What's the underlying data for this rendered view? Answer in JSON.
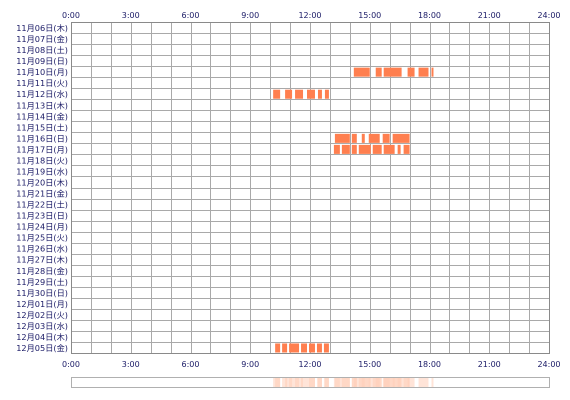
{
  "chart_data": {
    "type": "timeline",
    "x_ticks": [
      "0:00",
      "3:00",
      "6:00",
      "9:00",
      "12:00",
      "15:00",
      "18:00",
      "21:00",
      "24:00"
    ],
    "xlim": [
      0,
      24
    ],
    "grid": true,
    "bar_color": "#ff7f4f",
    "summary_color": "#ffcdb8",
    "days": [
      "11月06日(木)",
      "11月07日(金)",
      "11月08日(土)",
      "11月09日(日)",
      "11月10日(月)",
      "11月11日(火)",
      "11月12日(水)",
      "11月13日(木)",
      "11月14日(金)",
      "11月15日(土)",
      "11月16日(日)",
      "11月17日(月)",
      "11月18日(火)",
      "11月19日(水)",
      "11月20日(木)",
      "11月21日(金)",
      "11月22日(土)",
      "11月23日(日)",
      "11月24日(月)",
      "11月25日(火)",
      "11月26日(水)",
      "11月27日(木)",
      "11月28日(金)",
      "11月29日(土)",
      "11月30日(日)",
      "12月01日(月)",
      "12月02日(火)",
      "12月03日(水)",
      "12月04日(木)",
      "12月05日(金)"
    ],
    "activity": [
      {
        "day": "11月10日(月)",
        "blocks": [
          [
            14.2,
            15.0
          ],
          [
            15.3,
            15.6
          ],
          [
            15.7,
            16.6
          ],
          [
            16.9,
            17.25
          ],
          [
            17.45,
            17.95
          ],
          [
            18.1,
            18.2
          ]
        ]
      },
      {
        "day": "11月12日(水)",
        "blocks": [
          [
            10.15,
            10.5
          ],
          [
            10.75,
            11.1
          ],
          [
            11.25,
            11.65
          ],
          [
            11.85,
            12.25
          ],
          [
            12.4,
            12.6
          ],
          [
            12.75,
            12.95
          ]
        ]
      },
      {
        "day": "11月16日(日)",
        "blocks": [
          [
            13.25,
            14.0
          ],
          [
            14.1,
            14.35
          ],
          [
            14.6,
            14.75
          ],
          [
            14.95,
            15.5
          ],
          [
            15.65,
            16.0
          ],
          [
            16.15,
            17.0
          ]
        ]
      },
      {
        "day": "11月17日(月)",
        "blocks": [
          [
            13.2,
            13.5
          ],
          [
            13.6,
            14.0
          ],
          [
            14.1,
            14.35
          ],
          [
            14.45,
            15.05
          ],
          [
            15.15,
            15.6
          ],
          [
            15.7,
            16.25
          ],
          [
            16.4,
            16.55
          ],
          [
            16.7,
            17.0
          ]
        ]
      },
      {
        "day": "12月05日(金)",
        "blocks": [
          [
            10.25,
            10.5
          ],
          [
            10.6,
            10.85
          ],
          [
            10.95,
            11.45
          ],
          [
            11.55,
            11.85
          ],
          [
            11.95,
            12.25
          ],
          [
            12.35,
            12.6
          ],
          [
            12.7,
            12.95
          ]
        ]
      }
    ]
  }
}
